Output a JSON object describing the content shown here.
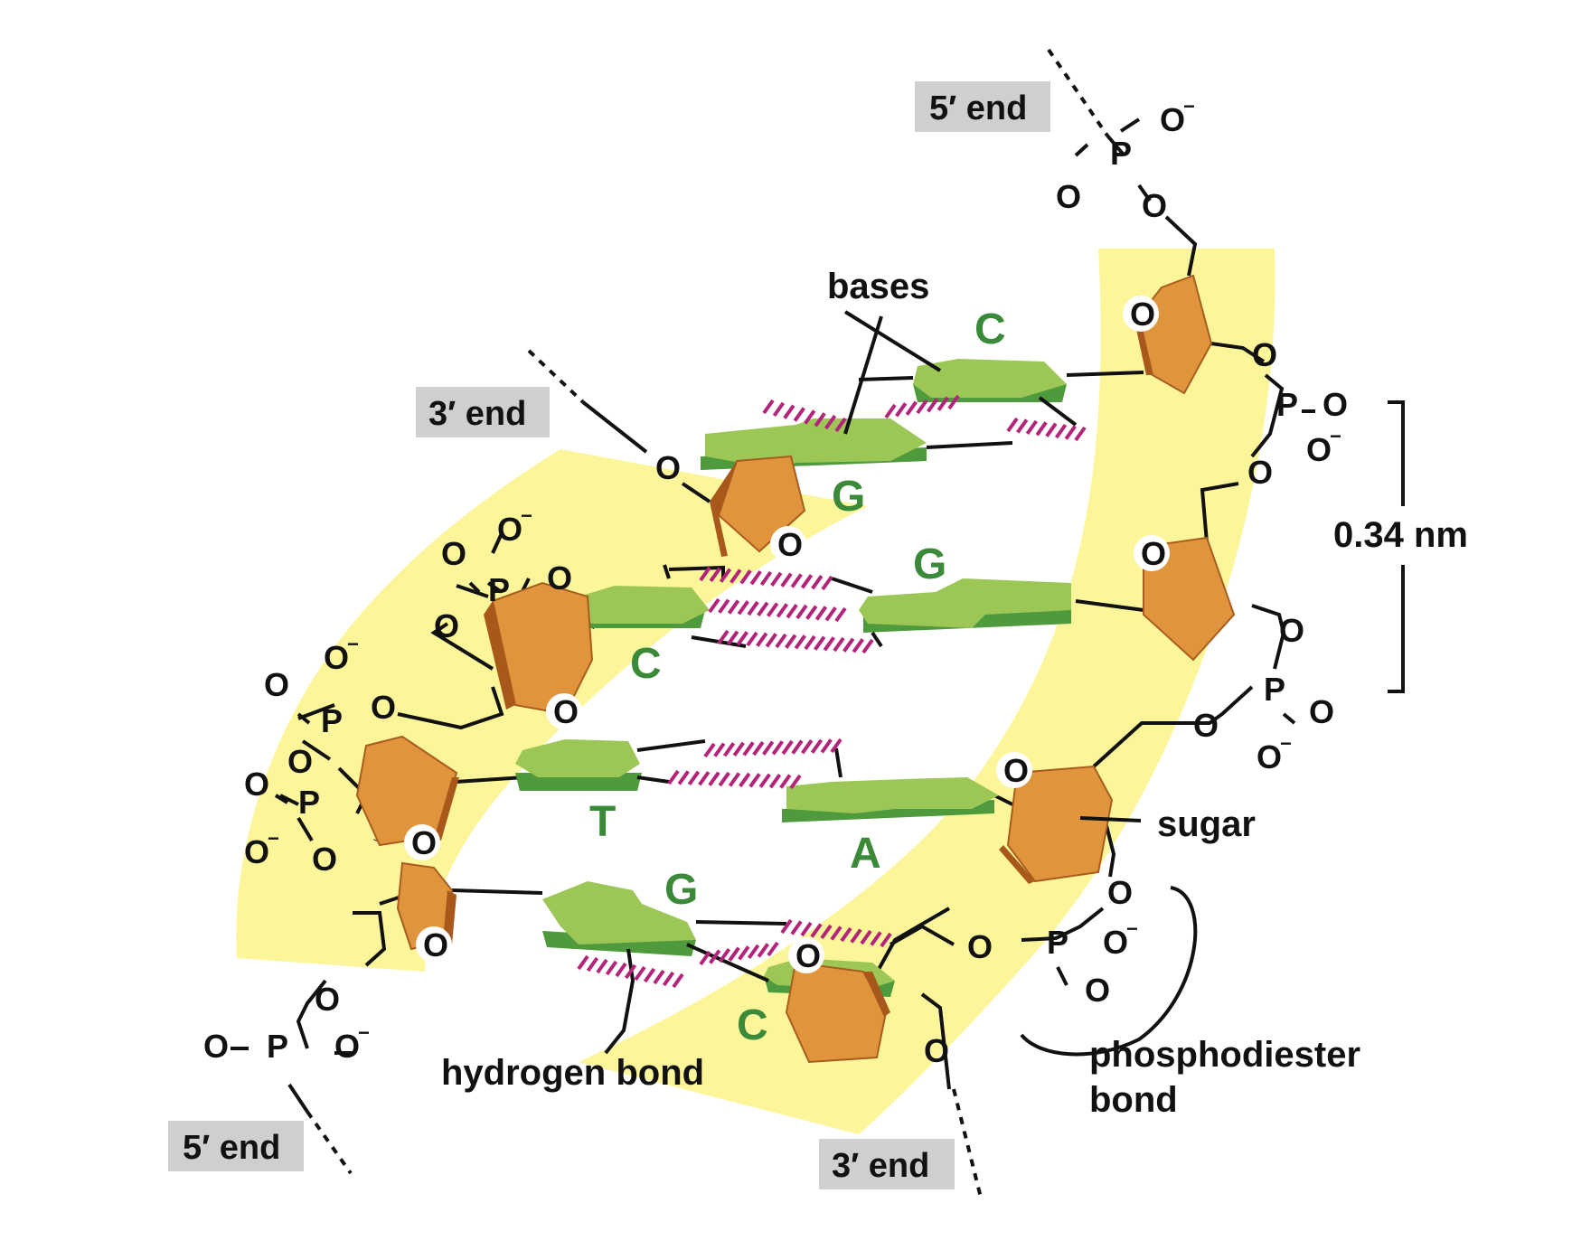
{
  "labels": {
    "end5_top": "5′ end",
    "end3_top": "3′ end",
    "end5_bottom": "5′ end",
    "end3_bottom": "3′ end",
    "bases": "bases",
    "sugar": "sugar",
    "hydrogen_bond": "hydrogen bond",
    "phosphodiester_line1": "phosphodiester",
    "phosphodiester_line2": "bond",
    "spacing": "0.34 nm"
  },
  "base_letters": {
    "c1": "C",
    "g1": "G",
    "g2": "G",
    "c2": "C",
    "t": "T",
    "a": "A",
    "g3": "G",
    "c3": "C"
  },
  "atoms": {
    "O": "O",
    "P": "P",
    "minus": "−"
  },
  "colors": {
    "backbone_band": "#fdf59a",
    "sugar": "#e0953d",
    "base": "#9cc757",
    "base_letter": "#3a8a3a",
    "hydrogen_bond": "#b3237a",
    "end_label_box": "#cfd0cd"
  }
}
